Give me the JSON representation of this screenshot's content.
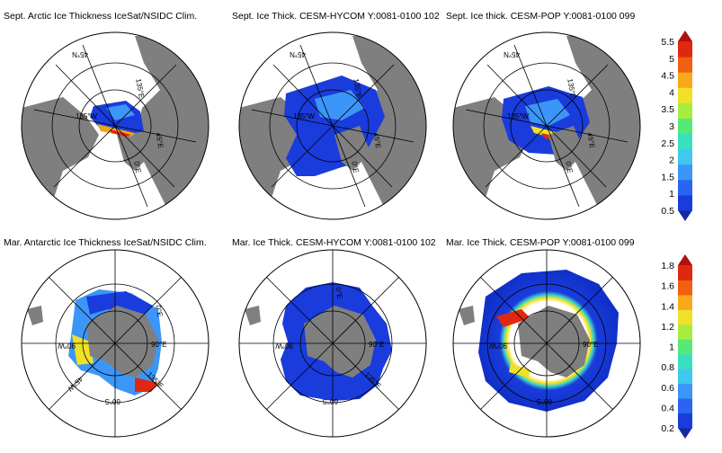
{
  "titles": {
    "arctic_obs": "Sept. Arctic Ice Thickness IceSat/NSIDC Clim.",
    "arctic_hycom": "Sept. Ice Thick. CESM-HYCOM Y:0081-0100 102",
    "arctic_pop": "Sept. Ice thick. CESM-POP Y:0081-0100 099",
    "antarctic_obs": "Mar. Antarctic Ice Thickness IceSat/NSIDC Clim.",
    "antarctic_hycom": "Mar. Ice Thick. CESM-HYCOM Y:0081-0100 102",
    "antarctic_pop": "Mar. Ice Thick. CESM-POP Y:0081-0100 099"
  },
  "arctic_map_labels": [
    "45°N",
    "135°W",
    "135°E",
    "45°E",
    "0°E"
  ],
  "antarctic_map_labels": [
    "0°E",
    "90°W",
    "90°E",
    "45°W",
    "135°E",
    "60°S"
  ],
  "colorbar_top": {
    "ticks": [
      "5.5",
      "5",
      "4.5",
      "4",
      "3.5",
      "3",
      "2.5",
      "2",
      "1.5",
      "1",
      "0.5"
    ]
  },
  "colorbar_bottom": {
    "ticks": [
      "1.8",
      "1.6",
      "1.4",
      "1.2",
      "1",
      "0.8",
      "0.6",
      "0.4",
      "0.2"
    ]
  },
  "colors": {
    "land": "#7f7f7f",
    "ice_low": "#1030c8",
    "ice_mid": "#3a8cff",
    "ice_high": "#e03010",
    "colorbar": [
      "#1428a0",
      "#1a3cdc",
      "#2a64f0",
      "#3c96f8",
      "#40c8f0",
      "#38e0c0",
      "#58e878",
      "#a8ec40",
      "#f0e028",
      "#f8a818",
      "#f06010",
      "#e02810",
      "#b01010"
    ]
  }
}
